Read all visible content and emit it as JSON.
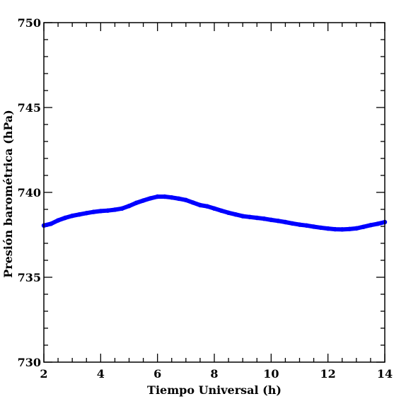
{
  "chart_data": {
    "type": "line",
    "title": "",
    "xlabel": "Tiempo Universal (h)",
    "ylabel": "Presión barométrica (hPa)",
    "xlim": [
      2,
      14
    ],
    "ylim": [
      730,
      750
    ],
    "xticks": [
      2,
      4,
      6,
      8,
      10,
      12,
      14
    ],
    "yticks": [
      730,
      735,
      740,
      745,
      750
    ],
    "xtick_labels": [
      "2",
      "4",
      "6",
      "8",
      "10",
      "12",
      "14"
    ],
    "ytick_labels": [
      "730",
      "735",
      "740",
      "745",
      "750"
    ],
    "grid": false,
    "series": [
      {
        "color": "#0000ff",
        "x": [
          2.0,
          2.25,
          2.5,
          2.75,
          3.0,
          3.25,
          3.5,
          3.75,
          4.0,
          4.25,
          4.5,
          4.75,
          5.0,
          5.25,
          5.5,
          5.75,
          6.0,
          6.25,
          6.5,
          6.75,
          7.0,
          7.25,
          7.5,
          7.75,
          8.0,
          8.25,
          8.5,
          8.75,
          9.0,
          9.25,
          9.5,
          9.75,
          10.0,
          10.25,
          10.5,
          10.75,
          11.0,
          11.25,
          11.5,
          11.75,
          12.0,
          12.25,
          12.5,
          12.75,
          13.0,
          13.25,
          13.5,
          13.75,
          14.0
        ],
        "y": [
          738.05,
          738.15,
          738.35,
          738.5,
          738.62,
          738.7,
          738.78,
          738.85,
          738.9,
          738.93,
          738.98,
          739.05,
          739.2,
          739.38,
          739.52,
          739.65,
          739.75,
          739.75,
          739.7,
          739.63,
          739.55,
          739.4,
          739.25,
          739.18,
          739.05,
          738.92,
          738.8,
          738.7,
          738.6,
          738.55,
          738.5,
          738.45,
          738.38,
          738.32,
          738.25,
          738.17,
          738.1,
          738.05,
          737.98,
          737.92,
          737.87,
          737.83,
          737.82,
          737.84,
          737.88,
          737.97,
          738.07,
          738.15,
          738.25
        ]
      }
    ]
  }
}
